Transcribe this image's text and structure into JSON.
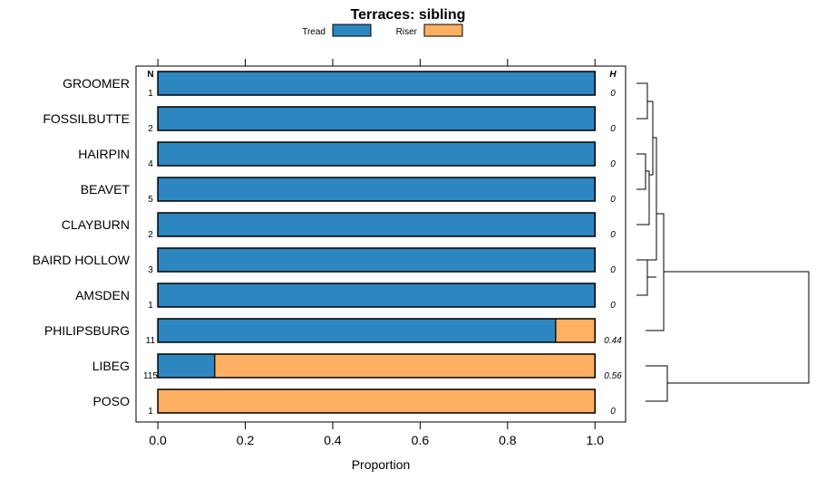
{
  "chart_data": {
    "type": "bar",
    "orientation": "horizontal",
    "stacked": true,
    "title": "Terraces: sibling",
    "xlabel": "Proportion",
    "ylabel": "",
    "xlim": [
      -0.05,
      1.07
    ],
    "x_ticks": [
      0.0,
      0.2,
      0.4,
      0.6,
      0.8,
      1.0
    ],
    "x_tick_labels": [
      "0.0",
      "0.2",
      "0.4",
      "0.6",
      "0.8",
      "1.0"
    ],
    "legend_position": "top-center",
    "n_header": "N",
    "h_header": "H",
    "categories": [
      "GROOMER",
      "FOSSILBUTTE",
      "HAIRPIN",
      "BEAVET",
      "CLAYBURN",
      "BAIRD HOLLOW",
      "AMSDEN",
      "PHILIPSBURG",
      "LIBEG",
      "POSO"
    ],
    "n_values": [
      "1",
      "2",
      "4",
      "5",
      "2",
      "3",
      "1",
      "11",
      "115",
      "1"
    ],
    "h_values": [
      "0",
      "0",
      "0",
      "0",
      "0",
      "0",
      "0",
      "0.44",
      "0.56",
      "0"
    ],
    "series": [
      {
        "name": "Tread",
        "color": "#2e86c1",
        "values": [
          1,
          1,
          1,
          1,
          1,
          1,
          1,
          0.91,
          0.13,
          0
        ]
      },
      {
        "name": "Riser",
        "color": "#ffb062",
        "values": [
          0,
          0,
          0,
          0,
          0,
          0,
          0,
          0.09,
          0.87,
          1
        ]
      }
    ]
  }
}
